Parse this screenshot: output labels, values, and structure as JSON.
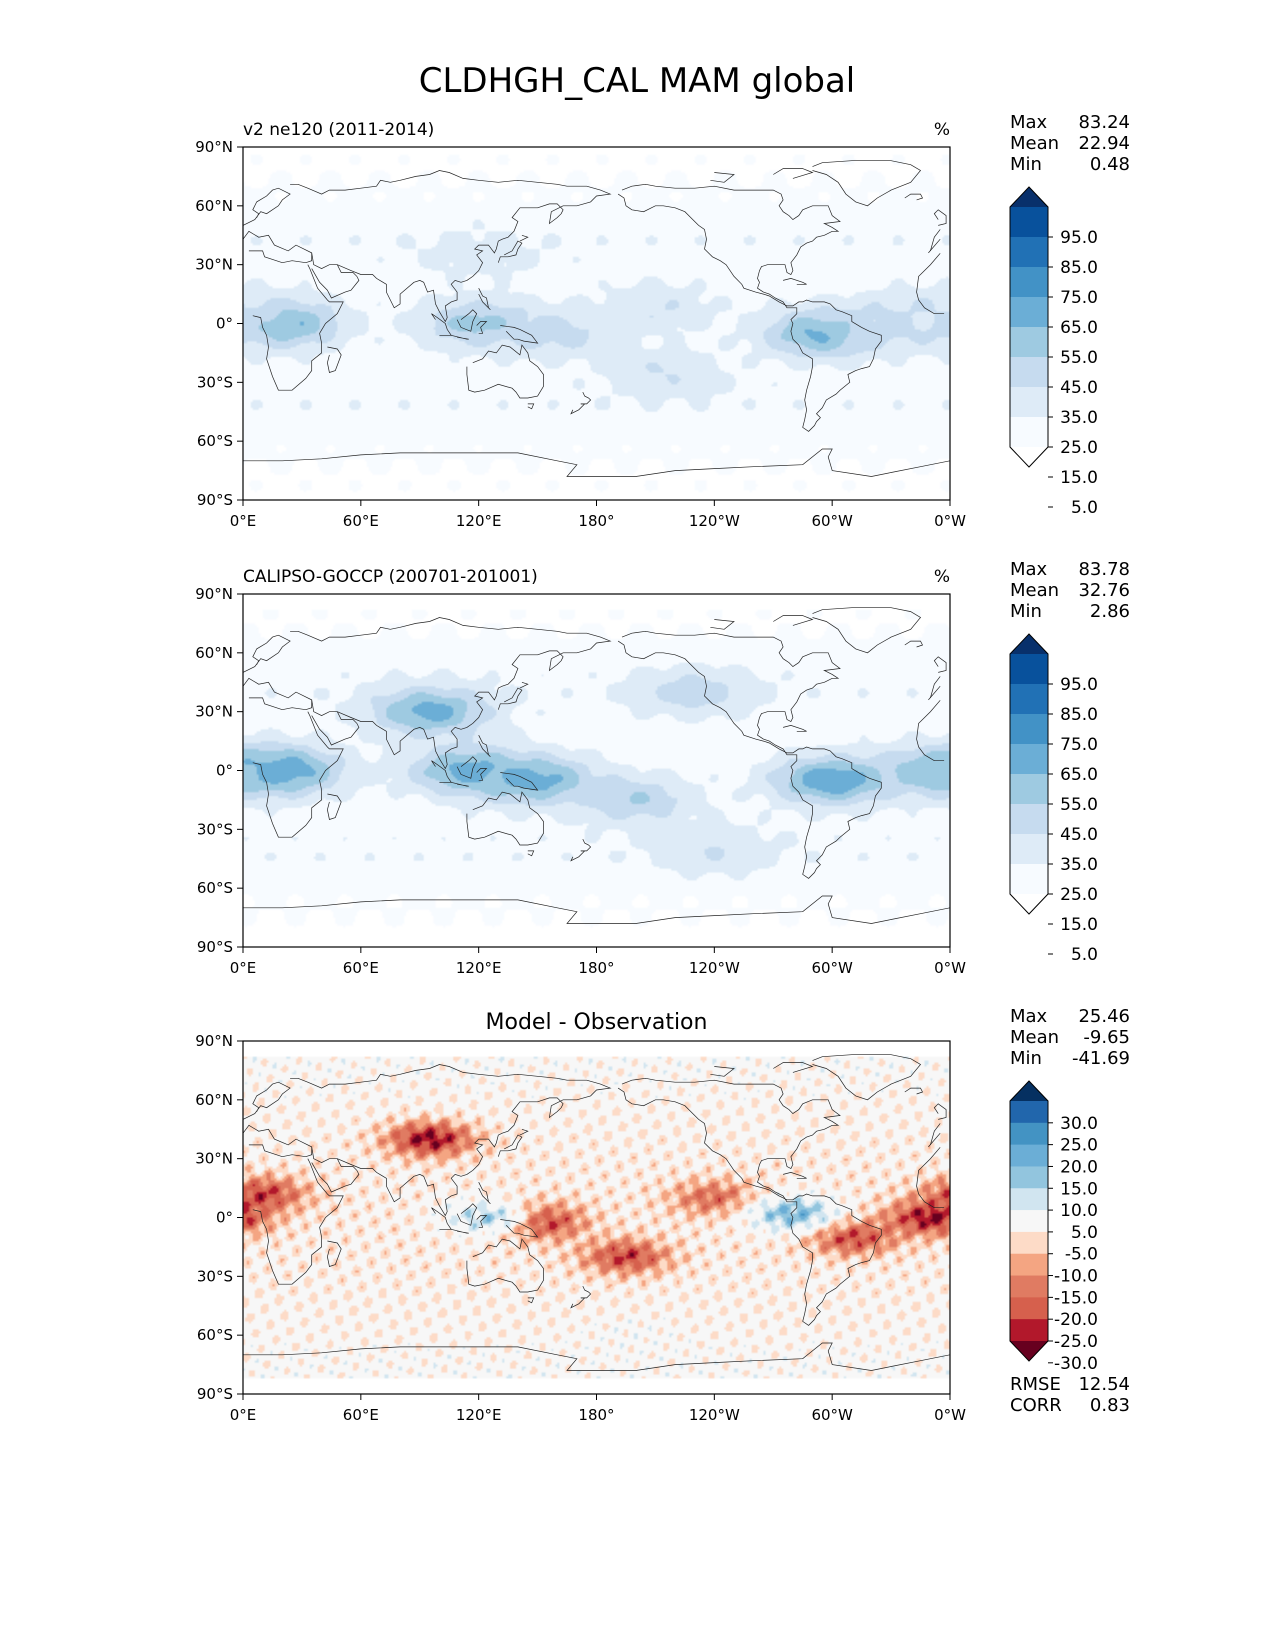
{
  "figure": {
    "title": "CLDHGH_CAL MAM global"
  },
  "axes": {
    "x_ticks": [
      "0°E",
      "60°E",
      "120°E",
      "180°",
      "120°W",
      "60°W",
      "0°W"
    ],
    "y_ticks": [
      "90°N",
      "60°N",
      "30°N",
      "0°",
      "30°S",
      "60°S",
      "90°S"
    ]
  },
  "stat_labels": {
    "max": "Max",
    "mean": "Mean",
    "min": "Min",
    "rmse": "RMSE",
    "corr": "CORR"
  },
  "panels": [
    {
      "title_left": "v2 ne120 (2011-2014)",
      "title_center": "",
      "units": "%",
      "stats": {
        "max": "83.24",
        "mean": "22.94",
        "min": "0.48"
      },
      "colorbar": {
        "labels": [
          "95.0",
          "85.0",
          "75.0",
          "65.0",
          "55.0",
          "45.0",
          "35.0",
          "25.0",
          "15.0",
          "5.0"
        ],
        "colors": [
          "#08306b",
          "#08519c",
          "#2171b5",
          "#4292c6",
          "#6baed6",
          "#9ecae1",
          "#c6dbef",
          "#deebf7",
          "#f7fbff",
          "#ffffff"
        ]
      }
    },
    {
      "title_left": "CALIPSO-GOCCP (200701-201001)",
      "title_center": "",
      "units": "%",
      "stats": {
        "max": "83.78",
        "mean": "32.76",
        "min": "2.86"
      },
      "colorbar": {
        "labels": [
          "95.0",
          "85.0",
          "75.0",
          "65.0",
          "55.0",
          "45.0",
          "35.0",
          "25.0",
          "15.0",
          "5.0"
        ],
        "colors": [
          "#08306b",
          "#08519c",
          "#2171b5",
          "#4292c6",
          "#6baed6",
          "#9ecae1",
          "#c6dbef",
          "#deebf7",
          "#f7fbff",
          "#ffffff"
        ]
      }
    },
    {
      "title_left": "",
      "title_center": "Model - Observation",
      "units": "",
      "stats": {
        "max": "25.46",
        "mean": "-9.65",
        "min": "-41.69",
        "rmse": "12.54",
        "corr": "0.83"
      },
      "colorbar": {
        "labels": [
          "30.0",
          "25.0",
          "20.0",
          "15.0",
          "10.0",
          "5.0",
          "-5.0",
          "-10.0",
          "-15.0",
          "-20.0",
          "-25.0",
          "-30.0"
        ],
        "colors": [
          "#053061",
          "#2166ac",
          "#4393c3",
          "#6baed6",
          "#92c5de",
          "#d1e5f0",
          "#f7f7f7",
          "#fddbc7",
          "#f4a582",
          "#e07b62",
          "#d6604d",
          "#b2182b",
          "#67001f"
        ]
      }
    }
  ],
  "chart_data": [
    {
      "type": "heatmap",
      "title": "v2 ne120 (2011-2014)",
      "units": "%",
      "xlim": [
        0,
        360
      ],
      "ylim": [
        -90,
        90
      ],
      "levels": [
        5,
        15,
        25,
        35,
        45,
        55,
        65,
        75,
        85,
        95
      ],
      "summary": {
        "max": 83.24,
        "mean": 22.94,
        "min": 0.48
      },
      "features": [
        {
          "lon": 20,
          "lat": 0,
          "value": 60
        },
        {
          "lon": 120,
          "lat": 0,
          "value": 50
        },
        {
          "lon": 160,
          "lat": -5,
          "value": 40
        },
        {
          "lon": 295,
          "lat": -5,
          "value": 60
        },
        {
          "lon": 210,
          "lat": 8,
          "value": 35
        },
        {
          "lon": 120,
          "lat": 35,
          "value": 30
        },
        {
          "lon": 215,
          "lat": -25,
          "value": 35
        },
        {
          "lon": 330,
          "lat": 0,
          "value": 40
        },
        {
          "lon": 350,
          "lat": 5,
          "value": 35
        }
      ]
    },
    {
      "type": "heatmap",
      "title": "CALIPSO-GOCCP (200701-201001)",
      "units": "%",
      "xlim": [
        0,
        360
      ],
      "ylim": [
        -90,
        90
      ],
      "levels": [
        5,
        15,
        25,
        35,
        45,
        55,
        65,
        75,
        85,
        95
      ],
      "summary": {
        "max": 83.78,
        "mean": 32.76,
        "min": 2.86
      },
      "features": [
        {
          "lon": 20,
          "lat": 0,
          "value": 65
        },
        {
          "lon": 95,
          "lat": 30,
          "value": 60
        },
        {
          "lon": 115,
          "lat": 0,
          "value": 60
        },
        {
          "lon": 150,
          "lat": -5,
          "value": 60
        },
        {
          "lon": 200,
          "lat": -15,
          "value": 45
        },
        {
          "lon": 300,
          "lat": -5,
          "value": 65
        },
        {
          "lon": 230,
          "lat": 40,
          "value": 40
        },
        {
          "lon": 355,
          "lat": 0,
          "value": 55
        },
        {
          "lon": 240,
          "lat": -40,
          "value": 35
        }
      ]
    },
    {
      "type": "heatmap",
      "title": "Model - Observation",
      "units": "%",
      "xlim": [
        0,
        360
      ],
      "ylim": [
        -90,
        90
      ],
      "levels": [
        -30,
        -25,
        -20,
        -15,
        -10,
        -5,
        5,
        10,
        15,
        20,
        25,
        30
      ],
      "summary": {
        "max": 25.46,
        "mean": -9.65,
        "min": -41.69,
        "rmse": 12.54,
        "corr": 0.83
      },
      "features": [
        {
          "lon": 95,
          "lat": 40,
          "value": -30
        },
        {
          "lon": 10,
          "lat": 12,
          "value": -25
        },
        {
          "lon": 150,
          "lat": -2,
          "value": -30
        },
        {
          "lon": 350,
          "lat": 0,
          "value": -30
        },
        {
          "lon": 195,
          "lat": -20,
          "value": -25
        },
        {
          "lon": 310,
          "lat": -10,
          "value": -25
        },
        {
          "lon": 240,
          "lat": 10,
          "value": -20
        },
        {
          "lon": 280,
          "lat": 2,
          "value": 15
        },
        {
          "lon": 125,
          "lat": 0,
          "value": 10
        },
        {
          "lon": 200,
          "lat": -60,
          "value": 0
        }
      ]
    }
  ]
}
